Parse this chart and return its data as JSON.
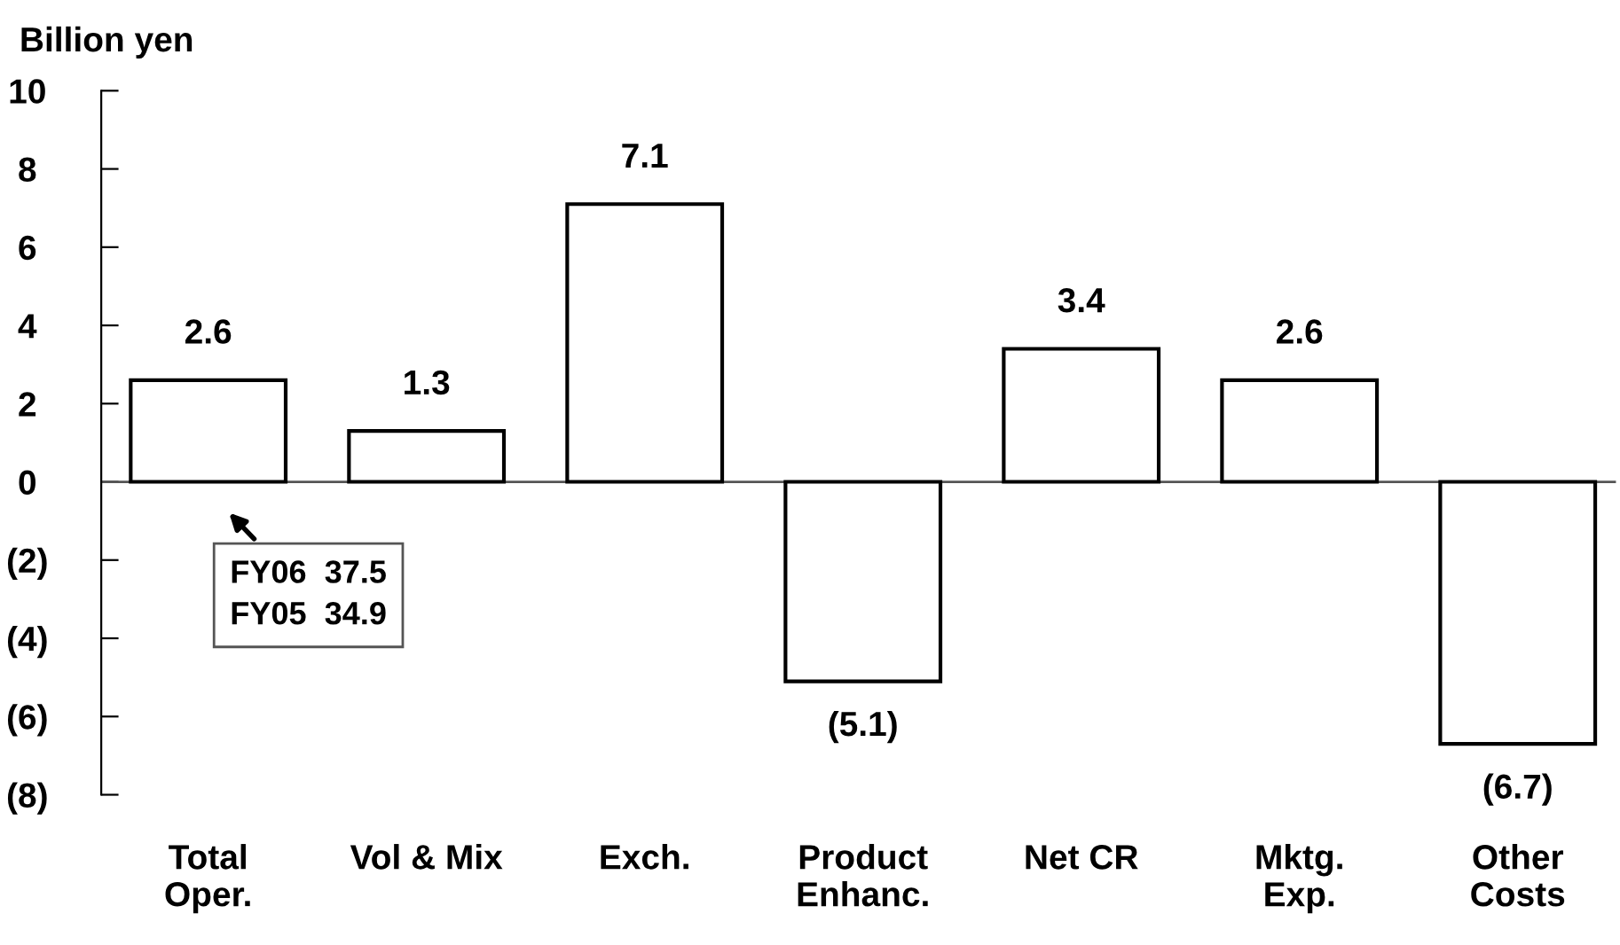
{
  "chart_data": {
    "type": "bar",
    "ylabel": "Billion yen",
    "categories": [
      "Total\nOper.",
      "Vol & Mix",
      "Exch.",
      "Product\nEnhanc.",
      "Net CR",
      "Mktg.\nExp.",
      "Other\nCosts"
    ],
    "values": [
      2.6,
      1.3,
      7.1,
      -5.1,
      3.4,
      2.6,
      -6.7
    ],
    "value_labels": [
      "2.6",
      "1.3",
      "7.1",
      "(5.1)",
      "3.4",
      "2.6",
      "(6.7)"
    ],
    "color": "#ffffff",
    "ylim": [
      -8,
      10
    ],
    "yticks": [
      10,
      8,
      6,
      4,
      2,
      0,
      {
        "value": -2,
        "label": "(2)"
      },
      {
        "value": -4,
        "label": "(4)"
      },
      {
        "value": -6,
        "label": "(6)"
      },
      {
        "value": -8,
        "label": "(8)"
      }
    ],
    "annotations": [
      {
        "text": "FY06  37.5\nFY05  34.9",
        "x": "Total\nOper.",
        "y": 0
      }
    ],
    "legend": false
  }
}
